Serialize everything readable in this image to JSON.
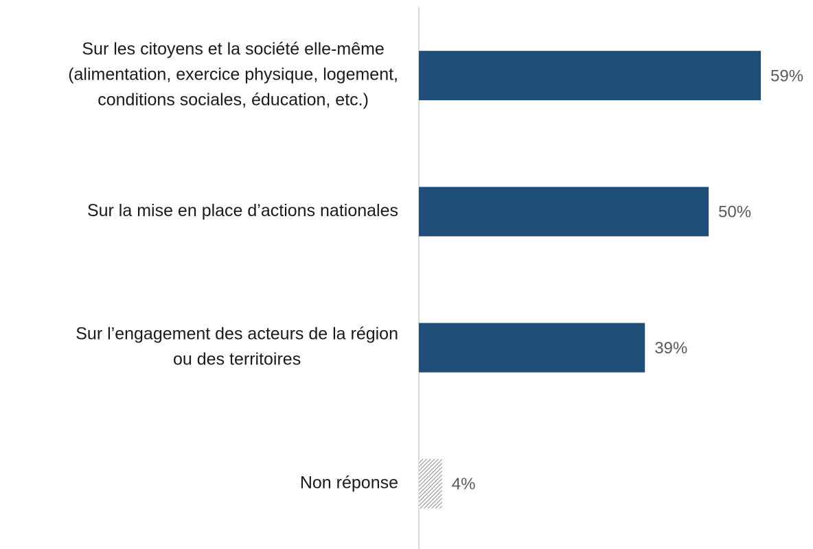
{
  "chart_data": {
    "type": "hbar",
    "categories": [
      [
        "Sur les citoyens et la société elle-même",
        "(alimentation, exercice physique, logement,",
        "conditions sociales, éducation, etc.)"
      ],
      [
        "Sur la mise en place d’actions nationales"
      ],
      [
        "Sur l’engagement des acteurs de la région",
        "ou des territoires"
      ],
      [
        "Non réponse"
      ]
    ],
    "values": [
      59,
      50,
      39,
      4
    ],
    "value_labels": [
      "59%",
      "50%",
      "39%",
      "4%"
    ],
    "colors": [
      "#1f4e79",
      "#1f4e79",
      "#1f4e79",
      "#a6a6a6"
    ],
    "hatched": [
      false,
      false,
      false,
      true
    ],
    "xlim": [
      0,
      68
    ]
  }
}
